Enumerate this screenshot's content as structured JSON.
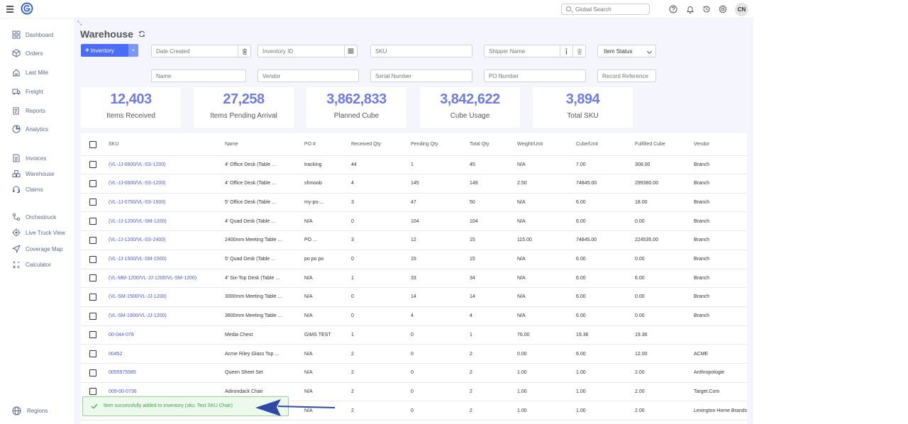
{
  "topbar": {
    "search_placeholder": "Global Search",
    "avatar_initials": "CN"
  },
  "sidebar": {
    "items": [
      {
        "label": "Dashboard",
        "icon": "dashboard-icon"
      },
      {
        "label": "Orders",
        "icon": "box-icon"
      },
      {
        "label": "Last Mile",
        "icon": "last-mile-icon"
      },
      {
        "label": "Freight",
        "icon": "truck-icon"
      },
      {
        "label": "Reports",
        "icon": "reports-icon"
      },
      {
        "label": "Analytics",
        "icon": "analytics-icon"
      },
      {
        "label": "Invoices",
        "icon": "invoice-icon"
      },
      {
        "label": "Warehouse",
        "icon": "warehouse-icon"
      },
      {
        "label": "Claims",
        "icon": "headset-icon"
      },
      {
        "label": "Orchestruck",
        "icon": "orchestruck-icon"
      },
      {
        "label": "Live Truck View",
        "icon": "live-view-icon"
      },
      {
        "label": "Coverage Map",
        "icon": "navigation-icon"
      },
      {
        "label": "Calculator",
        "icon": "calculator-icon"
      }
    ],
    "regions_label": "Regions"
  },
  "page": {
    "title": "Warehouse",
    "inventory_button": "Inventory"
  },
  "filters": {
    "date_created": "Date Created",
    "inventory_id": "Inventory ID",
    "sku": "SKU",
    "shipper_name": "Shipper Name",
    "item_status": "Item Status",
    "name": "Name",
    "vendor": "Vendor",
    "serial_number": "Serial Number",
    "po_number": "PO Number",
    "record_reference": "Record Reference"
  },
  "stats": [
    {
      "value": "12,403",
      "label": "Items Received"
    },
    {
      "value": "27,258",
      "label": "Items Pending Arrival"
    },
    {
      "value": "3,862,833",
      "label": "Planned Cube"
    },
    {
      "value": "3,842,622",
      "label": "Cube Usage"
    },
    {
      "value": "3,894",
      "label": "Total SKU"
    }
  ],
  "table": {
    "columns": [
      "SKU",
      "Name",
      "PO #",
      "Received Qty",
      "Pending Qty",
      "Total Qty",
      "Weight/Unit",
      "Cube/Unit",
      "Fulfilled Cube",
      "Vendor"
    ],
    "rows": [
      [
        "(VL-JJ-0600/VL-SS-1200)",
        "4' Office Desk (Table ...",
        "tracking",
        "44",
        "1",
        "45",
        "N/A",
        "7.00",
        "308.00",
        "Branch"
      ],
      [
        "(VL-JJ-0600/VL-SS-1200)",
        "4' Office Desk (Table ...",
        "shmoob",
        "4",
        "145",
        "149",
        "2.50",
        "74845.00",
        "299380.00",
        "Branch"
      ],
      [
        "(VL-JJ-0750/VL-SS-1500)",
        "5' Office Desk (Table ...",
        "my-po-...",
        "3",
        "47",
        "50",
        "N/A",
        "6.00",
        "18.00",
        "Branch"
      ],
      [
        "(VL-JJ-1200/VL-SM-1200)",
        "4' Quad Desk (Table ...",
        "N/A",
        "0",
        "104",
        "104",
        "N/A",
        "6.00",
        "0.00",
        "Branch"
      ],
      [
        "(VL-JJ-1200/VL-SS-2400)",
        "2400mm Meeting Table ...",
        "PO ...",
        "3",
        "12",
        "15",
        "115.00",
        "74845.00",
        "224535.00",
        "Branch"
      ],
      [
        "(VL-JJ-1500/VL-SM-1500)",
        "5' Quad Desk (Table ...",
        "po po po",
        "0",
        "15",
        "15",
        "N/A",
        "6.00",
        "0.00",
        "Branch"
      ],
      [
        "(VL-MM-1200/VL-JJ-1200/VL-SM-1200)",
        "4' Six-Top Desk (Table ...",
        "N/A",
        "1",
        "33",
        "34",
        "N/A",
        "6.00",
        "6.00",
        "Branch"
      ],
      [
        "(VL-SM-1500/VL-JJ-1200)",
        "3000mm Meeting Table ...",
        "N/A",
        "0",
        "14",
        "14",
        "N/A",
        "6.00",
        "0.00",
        "Branch"
      ],
      [
        "(VL-SM-1800/VL-JJ-1200)",
        "3600mm Meeting Table ...",
        "N/A",
        "0",
        "4",
        "4",
        "N/A",
        "6.00",
        "0.00",
        "Branch"
      ],
      [
        "00-044-078",
        "Media Chest",
        "GIMS TEST",
        "1",
        "0",
        "1",
        "76.00",
        "19.36",
        "19.36",
        ""
      ],
      [
        "00452",
        "Acme Riley Glass Top ...",
        "N/A",
        "2",
        "0",
        "2",
        "0.00",
        "6.00",
        "12.00",
        "ACME"
      ],
      [
        "0055975585",
        "Queen Sheet Set",
        "N/A",
        "2",
        "0",
        "2",
        "1.00",
        "1.00",
        "2.00",
        "Anthropologie"
      ],
      [
        "009-00-0736",
        "Adirondack Chair",
        "N/A",
        "2",
        "0",
        "2",
        "1.00",
        "1.00",
        "2.00",
        "Target.Com"
      ],
      [
        "",
        "",
        "N/A",
        "2",
        "0",
        "2",
        "1.00",
        "1.00",
        "2.00",
        "Lexington Home Brands"
      ]
    ]
  },
  "toast": {
    "message": "Item successfully added to inventory (sku: Test SKU Chair)"
  },
  "colors": {
    "accent": "#4a6cf7",
    "stat_value": "#6d7be6",
    "toast_text": "#3f9e3f",
    "arrow": "#2d49a6"
  }
}
